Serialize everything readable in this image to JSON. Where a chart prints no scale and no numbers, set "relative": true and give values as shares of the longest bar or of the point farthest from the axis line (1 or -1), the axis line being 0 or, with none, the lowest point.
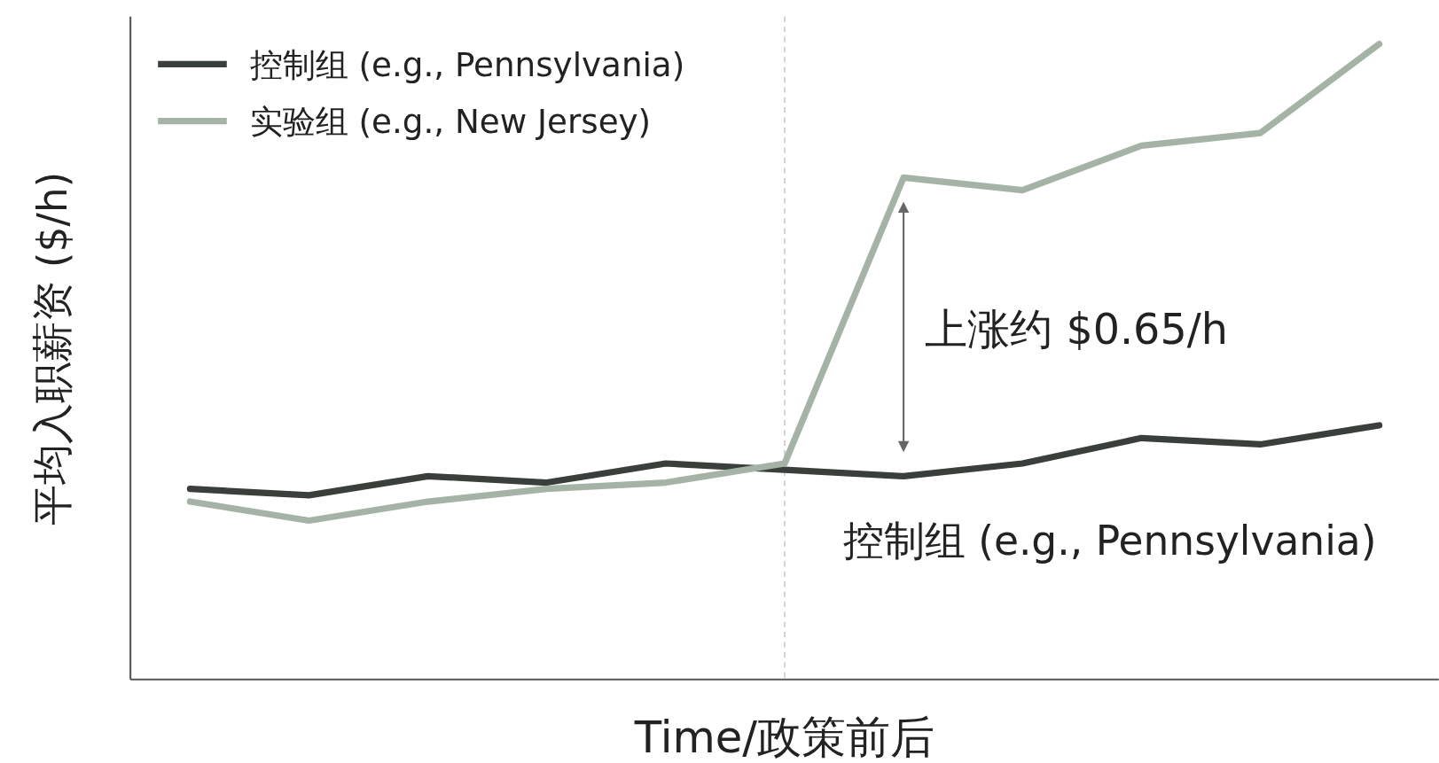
{
  "chart_data": {
    "type": "line",
    "relative": true,
    "xlabel": "Time/政策前后",
    "ylabel": "平均入职薪资 ($/h)",
    "legend": "top left",
    "categories": [
      null,
      null,
      null,
      null,
      null,
      null,
      null,
      null,
      null,
      null,
      null
    ],
    "series": [
      {
        "name": "控制组 (e.g., Pennsylvania)",
        "color": "#3b3f3c",
        "values": [
          0.3,
          0.29,
          0.32,
          0.31,
          0.34,
          0.33,
          0.32,
          0.34,
          0.38,
          0.37,
          0.4
        ]
      },
      {
        "name": "实验组 (e.g., New Jersey)",
        "color": "#a4b3a6",
        "values": [
          0.28,
          0.25,
          0.28,
          0.3,
          0.31,
          0.34,
          0.79,
          0.77,
          0.84,
          0.86,
          1
        ]
      }
    ],
    "annotations": [
      "上涨约 $0.65/h",
      "控制组 (e.g., Pennsylvania)"
    ]
  }
}
